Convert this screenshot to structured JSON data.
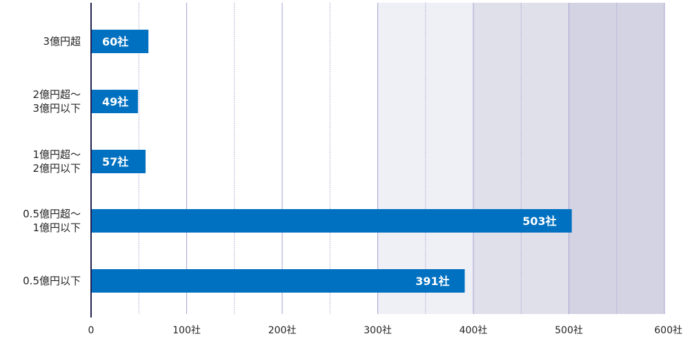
{
  "chart_data": {
    "type": "bar",
    "orientation": "horizontal",
    "categories": [
      [
        "3億円超"
      ],
      [
        "2億円超～",
        "3億円以下"
      ],
      [
        "1億円超～",
        "2億円以下"
      ],
      [
        "0.5億円超～",
        "1億円以下"
      ],
      [
        "0.5億円以下"
      ]
    ],
    "values": [
      60,
      49,
      57,
      503,
      391
    ],
    "data_labels": [
      "60社",
      "49社",
      "57社",
      "503社",
      "391社"
    ],
    "xlim": [
      0,
      600
    ],
    "x_ticks": [
      {
        "value": 0,
        "label": "0"
      },
      {
        "value": 100,
        "label": "100社"
      },
      {
        "value": 200,
        "label": "200社"
      },
      {
        "value": 300,
        "label": "300社"
      },
      {
        "value": 400,
        "label": "400社"
      },
      {
        "value": 500,
        "label": "500社"
      },
      {
        "value": 600,
        "label": "600社"
      }
    ],
    "minor_gridlines": [
      50,
      150,
      250,
      350,
      450,
      550
    ],
    "shaded_bands": [
      {
        "from": 300,
        "to": 400,
        "color": "#efeff6"
      },
      {
        "from": 400,
        "to": 500,
        "color": "#e0e0eb"
      },
      {
        "from": 500,
        "to": 600,
        "color": "#d3d3e3"
      }
    ],
    "grid": true,
    "title": "",
    "xlabel": "",
    "ylabel": ""
  },
  "colors": {
    "bar": "#0070c0",
    "axis": "#1f1f4d",
    "grid": "#a3a3d1"
  }
}
